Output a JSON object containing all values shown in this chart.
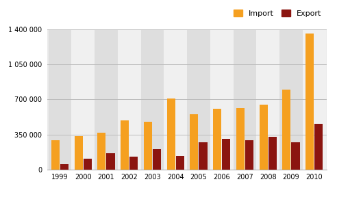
{
  "years": [
    "1999",
    "2000",
    "2001",
    "2002",
    "2003",
    "2004",
    "2005",
    "2006",
    "2007",
    "2008",
    "2009",
    "2010"
  ],
  "import_values": [
    290000,
    335000,
    365000,
    490000,
    480000,
    710000,
    550000,
    610000,
    615000,
    650000,
    800000,
    1360000
  ],
  "export_values": [
    55000,
    110000,
    165000,
    125000,
    205000,
    135000,
    275000,
    305000,
    290000,
    325000,
    275000,
    455000
  ],
  "import_color": "#F5A020",
  "export_color": "#8B1510",
  "ylim": [
    0,
    1400000
  ],
  "yticks": [
    0,
    350000,
    700000,
    1050000,
    1400000
  ],
  "ytick_labels": [
    "0",
    "350 000",
    "700 000",
    "1 050 000",
    "1 400 000"
  ],
  "legend_import": "Import",
  "legend_export": "Export",
  "plot_bg": "#ebebeb",
  "band_light": "#f0f0f0",
  "band_dark": "#dedede",
  "bar_width": 0.36,
  "bar_gap": 0.03
}
